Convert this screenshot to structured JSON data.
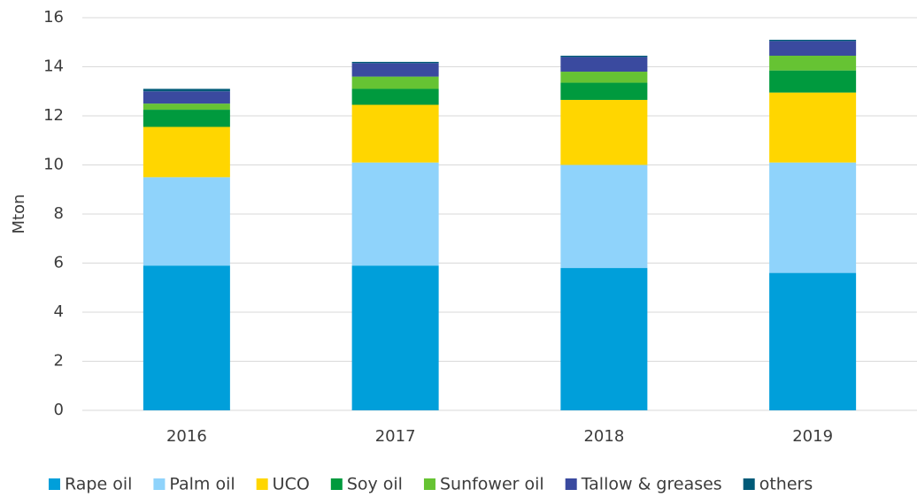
{
  "chart_data": {
    "type": "stacked_bar",
    "y_label": "Mton",
    "categories": [
      "2016",
      "2017",
      "2018",
      "2019"
    ],
    "series": [
      {
        "name": "Rape oil",
        "color": "#009fda",
        "values": [
          5.9,
          5.9,
          5.8,
          5.6
        ]
      },
      {
        "name": "Palm oil",
        "color": "#8fd3fb",
        "values": [
          3.6,
          4.2,
          4.2,
          4.5
        ]
      },
      {
        "name": "UCO",
        "color": "#ffd600",
        "values": [
          2.05,
          2.35,
          2.65,
          2.85
        ]
      },
      {
        "name": "Soy oil",
        "color": "#009a3e",
        "values": [
          0.7,
          0.65,
          0.7,
          0.9
        ]
      },
      {
        "name": "Sunfower oil",
        "color": "#66c333",
        "values": [
          0.25,
          0.5,
          0.45,
          0.6
        ]
      },
      {
        "name": "Tallow & greases",
        "color": "#3a4a9f",
        "values": [
          0.5,
          0.55,
          0.6,
          0.6
        ]
      },
      {
        "name": "others",
        "color": "#005a78",
        "values": [
          0.1,
          0.05,
          0.05,
          0.05
        ]
      }
    ],
    "ylim": [
      0,
      16
    ],
    "yticks": [
      0,
      2,
      4,
      6,
      8,
      10,
      12,
      14,
      16
    ],
    "grid": true,
    "legend": "bottom"
  }
}
